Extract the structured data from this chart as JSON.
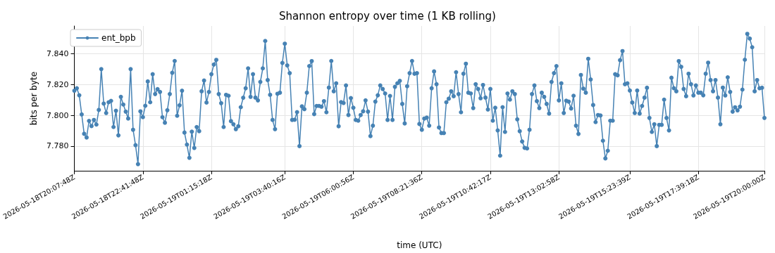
{
  "chart_data": {
    "type": "line",
    "title": "Shannon entropy over time (1 KB rolling)",
    "xlabel": "time (UTC)",
    "ylabel": "bits per byte",
    "categories": [
      "2026-05-18T20:07:48Z",
      null,
      null,
      null,
      null,
      null,
      null,
      null,
      null,
      null,
      null,
      null,
      null,
      null,
      null,
      null,
      null,
      null,
      null,
      null,
      null,
      null,
      null,
      null,
      null,
      null,
      null,
      null,
      "2026-05-18T22:41:48Z",
      null,
      null,
      null,
      null,
      null,
      null,
      null,
      null,
      null,
      null,
      null,
      null,
      null,
      null,
      null,
      null,
      null,
      null,
      null,
      null,
      null,
      null,
      null,
      null,
      null,
      null,
      null,
      "2026-05-19T01:15:18Z",
      null,
      null,
      null,
      null,
      null,
      null,
      null,
      null,
      null,
      null,
      null,
      null,
      null,
      null,
      null,
      null,
      null,
      null,
      null,
      null,
      null,
      null,
      null,
      null,
      null,
      null,
      null,
      null,
      null,
      "2026-05-19T03:40:16Z",
      null,
      null,
      null,
      null,
      null,
      null,
      null,
      null,
      null,
      null,
      null,
      null,
      null,
      null,
      null,
      null,
      null,
      null,
      null,
      null,
      null,
      null,
      null,
      null,
      null,
      null,
      null,
      "2026-05-19T06:00:56Z",
      null,
      null,
      null,
      null,
      null,
      null,
      null,
      null,
      null,
      null,
      null,
      null,
      null,
      null,
      null,
      null,
      null,
      null,
      null,
      null,
      null,
      null,
      null,
      null,
      null,
      null,
      null,
      "2026-05-19T08:21:36Z",
      null,
      null,
      null,
      null,
      null,
      null,
      null,
      null,
      null,
      null,
      null,
      null,
      null,
      null,
      null,
      null,
      null,
      null,
      null,
      null,
      null,
      null,
      null,
      null,
      null,
      null,
      null,
      "2026-05-19T10:42:17Z",
      null,
      null,
      null,
      null,
      null,
      null,
      null,
      null,
      null,
      null,
      null,
      null,
      null,
      null,
      null,
      null,
      null,
      null,
      null,
      null,
      null,
      null,
      null,
      null,
      null,
      null,
      null,
      "2026-05-19T13:02:58Z",
      null,
      null,
      null,
      null,
      null,
      null,
      null,
      null,
      null,
      null,
      null,
      null,
      null,
      null,
      null,
      null,
      null,
      null,
      null,
      null,
      null,
      null,
      null,
      null,
      null,
      null,
      null,
      null,
      "2026-05-19T15:23:39Z",
      null,
      null,
      null,
      null,
      null,
      null,
      null,
      null,
      null,
      null,
      null,
      null,
      null,
      null,
      null,
      null,
      null,
      null,
      null,
      null,
      null,
      null,
      null,
      null,
      null,
      null,
      null,
      "2026-05-19T17:39:18Z",
      null,
      null,
      null,
      null,
      null,
      null,
      null,
      null,
      null,
      null,
      null,
      null,
      null,
      null,
      null,
      null,
      null,
      null,
      null,
      null,
      null,
      null,
      null,
      null,
      null,
      null,
      "2026-05-19T20:00:00Z"
    ],
    "series": [
      {
        "name": "ent_bpb",
        "color": "#4682b4",
        "values": [
          7.816,
          7.8176,
          7.813,
          7.8006,
          7.788,
          7.7856,
          7.7964,
          7.793,
          7.797,
          7.794,
          7.8035,
          7.83,
          7.8076,
          7.8015,
          7.8085,
          7.8094,
          7.7924,
          7.803,
          7.787,
          7.812,
          7.807,
          7.8024,
          7.7979,
          7.83,
          7.7906,
          7.7806,
          7.7683,
          7.8026,
          7.7988,
          7.8062,
          7.822,
          7.8085,
          7.8267,
          7.8138,
          7.817,
          7.8152,
          7.7988,
          7.7952,
          7.8033,
          7.8138,
          7.8276,
          7.8353,
          7.7997,
          7.8065,
          7.816,
          7.7888,
          7.781,
          7.7724,
          7.7894,
          7.7788,
          7.7924,
          7.7897,
          7.8156,
          7.8226,
          7.8083,
          7.8152,
          7.8267,
          7.833,
          7.836,
          7.8138,
          7.8079,
          7.7924,
          7.8133,
          7.8127,
          7.7962,
          7.7942,
          7.791,
          7.7929,
          7.8053,
          7.8114,
          7.8176,
          7.8305,
          7.812,
          7.8267,
          7.8115,
          7.8097,
          7.8217,
          7.8305,
          7.8483,
          7.8229,
          7.8133,
          7.797,
          7.791,
          7.814,
          7.8147,
          7.834,
          7.8465,
          7.8324,
          7.8274,
          7.797,
          7.7971,
          7.8021,
          7.78,
          7.8058,
          7.804,
          7.8147,
          7.832,
          7.8352,
          7.8008,
          7.8061,
          7.8061,
          7.8056,
          7.8092,
          7.802,
          7.818,
          7.8353,
          7.8156,
          7.8208,
          7.7929,
          7.8086,
          7.808,
          7.8194,
          7.8002,
          7.8112,
          7.8049,
          7.797,
          7.7965,
          7.8002,
          7.8026,
          7.8097,
          7.8024,
          7.7865,
          7.7933,
          7.8089,
          7.813,
          7.8194,
          7.8171,
          7.8142,
          7.797,
          7.8126,
          7.797,
          7.8185,
          7.8208,
          7.8224,
          7.8074,
          7.7947,
          7.8189,
          7.8274,
          7.8353,
          7.827,
          7.8274,
          7.7944,
          7.7906,
          7.7979,
          7.7985,
          7.7933,
          7.8176,
          7.8285,
          7.8202,
          7.7921,
          7.7885,
          7.7885,
          7.8085,
          7.8108,
          7.8156,
          7.8124,
          7.828,
          7.8138,
          7.802,
          7.827,
          7.8335,
          7.8147,
          7.8142,
          7.8047,
          7.8202,
          7.8171,
          7.8111,
          7.8197,
          7.8115,
          7.8038,
          7.8171,
          7.7965,
          7.8049,
          7.7902,
          7.7738,
          7.8053,
          7.7892,
          7.8142,
          7.8102,
          7.8156,
          7.8138,
          7.7974,
          7.7897,
          7.783,
          7.7789,
          7.7785,
          7.7906,
          7.8138,
          7.8194,
          7.8092,
          7.8047,
          7.8147,
          7.812,
          7.8074,
          7.8011,
          7.8217,
          7.8274,
          7.832,
          7.8097,
          7.8208,
          7.8015,
          7.8095,
          7.8089,
          7.8044,
          7.8127,
          7.7933,
          7.7879,
          7.8262,
          7.8173,
          7.8147,
          7.8367,
          7.8233,
          7.8067,
          7.7956,
          7.8002,
          7.7999,
          7.7835,
          7.772,
          7.777,
          7.7965,
          7.7965,
          7.8267,
          7.826,
          7.8358,
          7.8417,
          7.8202,
          7.8208,
          7.8161,
          7.8083,
          7.8015,
          7.8161,
          7.8011,
          7.8061,
          7.8115,
          7.8179,
          7.7983,
          7.7892,
          7.7942,
          7.78,
          7.7938,
          7.7938,
          7.8102,
          7.7983,
          7.7902,
          7.8244,
          7.8176,
          7.8156,
          7.8352,
          7.8315,
          7.8171,
          7.8124,
          7.827,
          7.8202,
          7.8129,
          7.8194,
          7.8147,
          7.8147,
          7.813,
          7.827,
          7.8342,
          7.8229,
          7.8156,
          7.8229,
          7.8115,
          7.7942,
          7.818,
          7.8129,
          7.8247,
          7.8152,
          7.8024,
          7.8052,
          7.8032,
          7.8056,
          7.8167,
          7.8361,
          7.8529,
          7.8498,
          7.8442,
          7.8156,
          7.8229,
          7.8176,
          7.8179,
          7.7983
        ]
      }
    ],
    "ylim": [
      7.764,
      7.858
    ],
    "yticks": [
      {
        "value": 7.78,
        "label": "7.780"
      },
      {
        "value": 7.8,
        "label": "7.800"
      },
      {
        "value": 7.82,
        "label": "7.820"
      },
      {
        "value": 7.84,
        "label": "7.840"
      }
    ],
    "grid": true,
    "legend": "top left",
    "marker": "circle",
    "line_style": "solid"
  }
}
